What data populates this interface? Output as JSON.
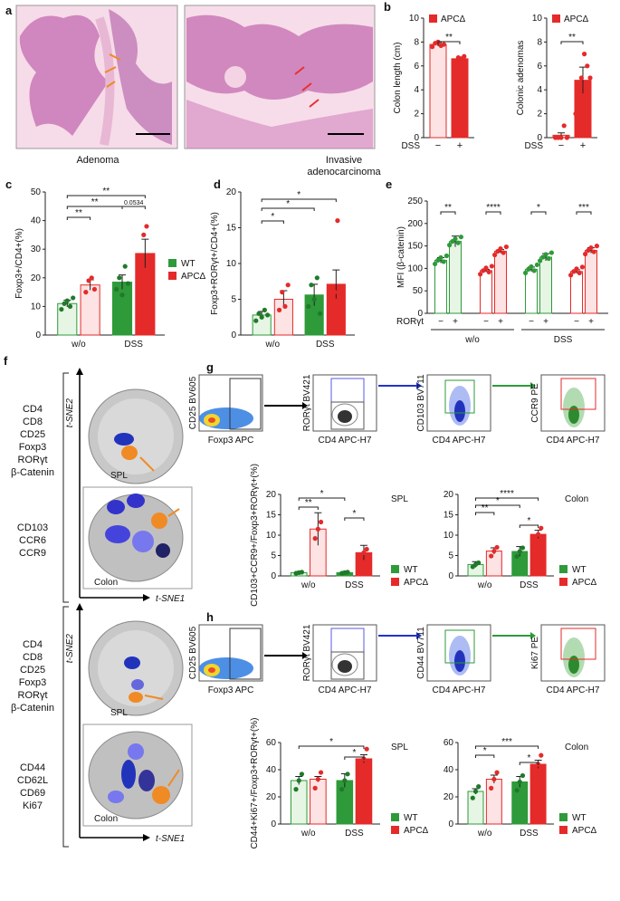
{
  "panels": {
    "a": {
      "letter": "a",
      "images": [
        {
          "caption": "Adenoma",
          "caption_color": "#e8803a"
        },
        {
          "caption_lines": [
            "Invasive",
            "adenocarcinoma"
          ],
          "caption_color": "#e83030"
        }
      ]
    },
    "b": {
      "letter": "b"
    },
    "c": {
      "letter": "c"
    },
    "d": {
      "letter": "d"
    },
    "e": {
      "letter": "e"
    },
    "f": {
      "letter": "f",
      "markers_top": [
        "CD4",
        "CD8",
        "CD25",
        "Foxp3",
        "RORγt",
        "β-Catenin"
      ],
      "colored_top": [
        {
          "text": "CD103",
          "color": "#f08a24"
        },
        {
          "text": "CCR6",
          "color": "#5a5ae6"
        },
        {
          "text": "CCR9",
          "color": "#f08a24"
        }
      ],
      "markers_bottom": [
        "CD4",
        "CD8",
        "CD25",
        "Foxp3",
        "RORγt",
        "β-Catenin"
      ],
      "colored_bottom": [
        {
          "text": "CD44",
          "color": "#f08a24"
        },
        {
          "text": "CD62L",
          "color": "#3b3bd6"
        },
        {
          "text": "CD69",
          "color": "#6b6bf0"
        },
        {
          "text": "Ki67",
          "color": "#f08a24"
        }
      ],
      "axis_y": "t-SNE2",
      "axis_x": "t-SNE1",
      "tissue_spl": "SPL",
      "tissue_colon": "Colon"
    },
    "g": {
      "letter": "g",
      "flow": [
        {
          "y": "CD25 BV605",
          "x": "Foxp3 APC"
        },
        {
          "y": "RORγt BV421",
          "x": "CD4 APC-H7"
        },
        {
          "y": "CD103 BV711",
          "x": "CD4 APC-H7"
        },
        {
          "y": "CCR9 PE",
          "x": "CD4 APC-H7"
        }
      ]
    },
    "h": {
      "letter": "h",
      "flow": [
        {
          "y": "CD25 BV605",
          "x": "Foxp3 APC"
        },
        {
          "y": "RORγt BV421",
          "x": "CD4 APC-H7"
        },
        {
          "y": "CD44 BV711",
          "x": "CD4 APC-H7"
        },
        {
          "y": "Ki67 PE",
          "x": "CD4 APC-H7"
        }
      ]
    }
  },
  "legend": {
    "wt": "WT",
    "apc": "APCΔ",
    "wt_color": "#2e9a3a",
    "apc_color": "#e52a2a",
    "wt_light": "#e6f5e4",
    "apc_light": "#fde3e3"
  },
  "chart_data": [
    {
      "id": "b1",
      "type": "bar",
      "ylabel": "Colon length (cm)",
      "legend": "APCΔ",
      "ylim": [
        0,
        10
      ],
      "ticks": [
        0,
        2,
        4,
        6,
        8,
        10
      ],
      "categories": [
        "−",
        "+"
      ],
      "xprefix": "DSS",
      "values": [
        7.8,
        6.6
      ],
      "errors": [
        0.15,
        0.15
      ],
      "points": [
        [
          7.6,
          7.9,
          8.0,
          7.7,
          7.8
        ],
        [
          6.4,
          6.7,
          6.6,
          6.8
        ]
      ],
      "sig": [
        "**"
      ]
    },
    {
      "id": "b2",
      "type": "bar",
      "ylabel": "Colonic adenomas",
      "legend": "APCΔ",
      "ylim": [
        0,
        10
      ],
      "ticks": [
        0,
        2,
        4,
        6,
        8,
        10
      ],
      "categories": [
        "−",
        "+"
      ],
      "xprefix": "DSS",
      "values": [
        0.2,
        4.8
      ],
      "errors": [
        0.2,
        1.1
      ],
      "points": [
        [
          0,
          0,
          0,
          1,
          0
        ],
        [
          2,
          4,
          5,
          7,
          6,
          5
        ]
      ],
      "sig": [
        "**"
      ]
    },
    {
      "id": "c",
      "type": "bar",
      "ylabel": "Foxp3+/CD4+(%)",
      "ylim": [
        0,
        50
      ],
      "ticks": [
        0,
        10,
        20,
        30,
        40,
        50
      ],
      "groups": [
        "w/o",
        "DSS"
      ],
      "series": [
        {
          "name": "WT",
          "values": [
            11,
            18.5
          ],
          "errors": [
            1.2,
            2.5
          ]
        },
        {
          "name": "APCΔ",
          "values": [
            17.5,
            28.5
          ],
          "errors": [
            1.8,
            5
          ]
        }
      ],
      "points": [
        [
          [
            9,
            11,
            12,
            10,
            13
          ],
          [
            16,
            20,
            14,
            24,
            18
          ]
        ],
        [
          [
            15,
            19,
            20,
            16
          ],
          [
            22,
            35,
            38,
            21
          ]
        ]
      ],
      "sig": [
        "**",
        "**",
        "0.0534",
        "**"
      ]
    },
    {
      "id": "d",
      "type": "bar",
      "ylabel": "Foxp3+RORγt+/CD4+(%)",
      "ylim": [
        0,
        20
      ],
      "ticks": [
        0,
        5,
        10,
        15,
        20
      ],
      "groups": [
        "w/o",
        "DSS"
      ],
      "series": [
        {
          "name": "WT",
          "values": [
            2.8,
            5.6
          ],
          "errors": [
            0.5,
            1.5
          ]
        },
        {
          "name": "APCΔ",
          "values": [
            5,
            7.1
          ],
          "errors": [
            1.2,
            2
          ]
        }
      ],
      "points": [
        [
          [
            2,
            3,
            2.5,
            3.5,
            2.8
          ],
          [
            4,
            7,
            5,
            8,
            3
          ]
        ],
        [
          [
            3.5,
            6,
            4,
            7
          ],
          [
            4,
            6,
            16,
            4
          ]
        ]
      ],
      "sig": [
        "*",
        "*",
        "*"
      ]
    },
    {
      "id": "e",
      "type": "bar",
      "ylabel": "MFI (β-catenin)",
      "ylim": [
        0,
        250
      ],
      "ticks": [
        0,
        50,
        100,
        150,
        200,
        250
      ],
      "groups": [
        "w/o",
        "DSS"
      ],
      "ror": [
        "RORγt",
        "−",
        "+",
        "−",
        "+",
        "−",
        "+",
        "−",
        "+"
      ],
      "pairs": [
        {
          "values": [
            118,
            160
          ],
          "errors": [
            6,
            12
          ]
        },
        {
          "values": [
            95,
            138
          ],
          "errors": [
            3,
            4
          ]
        },
        {
          "values": [
            98,
            125
          ],
          "errors": [
            5,
            8
          ]
        },
        {
          "values": [
            93,
            140
          ],
          "errors": [
            4,
            6
          ]
        }
      ],
      "sig": [
        "**",
        "****",
        "*",
        "***"
      ]
    },
    {
      "id": "g1",
      "type": "bar",
      "ylabel": "CD103+CCR9+/Foxp3+RORγt+(%)",
      "title": "SPL",
      "ylim": [
        0,
        20
      ],
      "ticks": [
        0,
        5,
        10,
        15,
        20
      ],
      "groups": [
        "w/o",
        "DSS"
      ],
      "series": [
        {
          "name": "WT",
          "values": [
            0.8,
            0.8
          ],
          "errors": [
            0.3,
            0.3
          ]
        },
        {
          "name": "APCΔ",
          "values": [
            11.5,
            5.7
          ],
          "errors": [
            4,
            1.8
          ]
        }
      ],
      "sig": [
        "*",
        "**",
        "*"
      ]
    },
    {
      "id": "g2",
      "type": "bar",
      "title": "Colon",
      "ylim": [
        0,
        20
      ],
      "ticks": [
        0,
        5,
        10,
        15,
        20
      ],
      "groups": [
        "w/o",
        "DSS"
      ],
      "series": [
        {
          "name": "WT",
          "values": [
            2.8,
            6
          ],
          "errors": [
            0.7,
            1.2
          ]
        },
        {
          "name": "APCΔ",
          "values": [
            6.1,
            10.2
          ],
          "errors": [
            0.8,
            1
          ]
        }
      ],
      "sig": [
        "****",
        "*",
        "**",
        "*"
      ]
    },
    {
      "id": "h1",
      "type": "bar",
      "ylabel": "CD44+Ki67+/Foxp3+RORγt+(%)",
      "title": "SPL",
      "ylim": [
        0,
        60
      ],
      "ticks": [
        0,
        20,
        40,
        60
      ],
      "groups": [
        "w/o",
        "DSS"
      ],
      "series": [
        {
          "name": "WT",
          "values": [
            32,
            32
          ],
          "errors": [
            3,
            5
          ]
        },
        {
          "name": "APCΔ",
          "values": [
            33,
            48
          ],
          "errors": [
            2,
            3
          ]
        }
      ],
      "sig": [
        "*",
        "*"
      ]
    },
    {
      "id": "h2",
      "type": "bar",
      "title": "Colon",
      "ylim": [
        0,
        60
      ],
      "ticks": [
        0,
        20,
        40,
        60
      ],
      "groups": [
        "w/o",
        "DSS"
      ],
      "series": [
        {
          "name": "WT",
          "values": [
            24,
            31
          ],
          "errors": [
            2,
            4
          ]
        },
        {
          "name": "APCΔ",
          "values": [
            33,
            44
          ],
          "errors": [
            3,
            3
          ]
        }
      ],
      "sig": [
        "***",
        "*",
        "*"
      ]
    }
  ]
}
